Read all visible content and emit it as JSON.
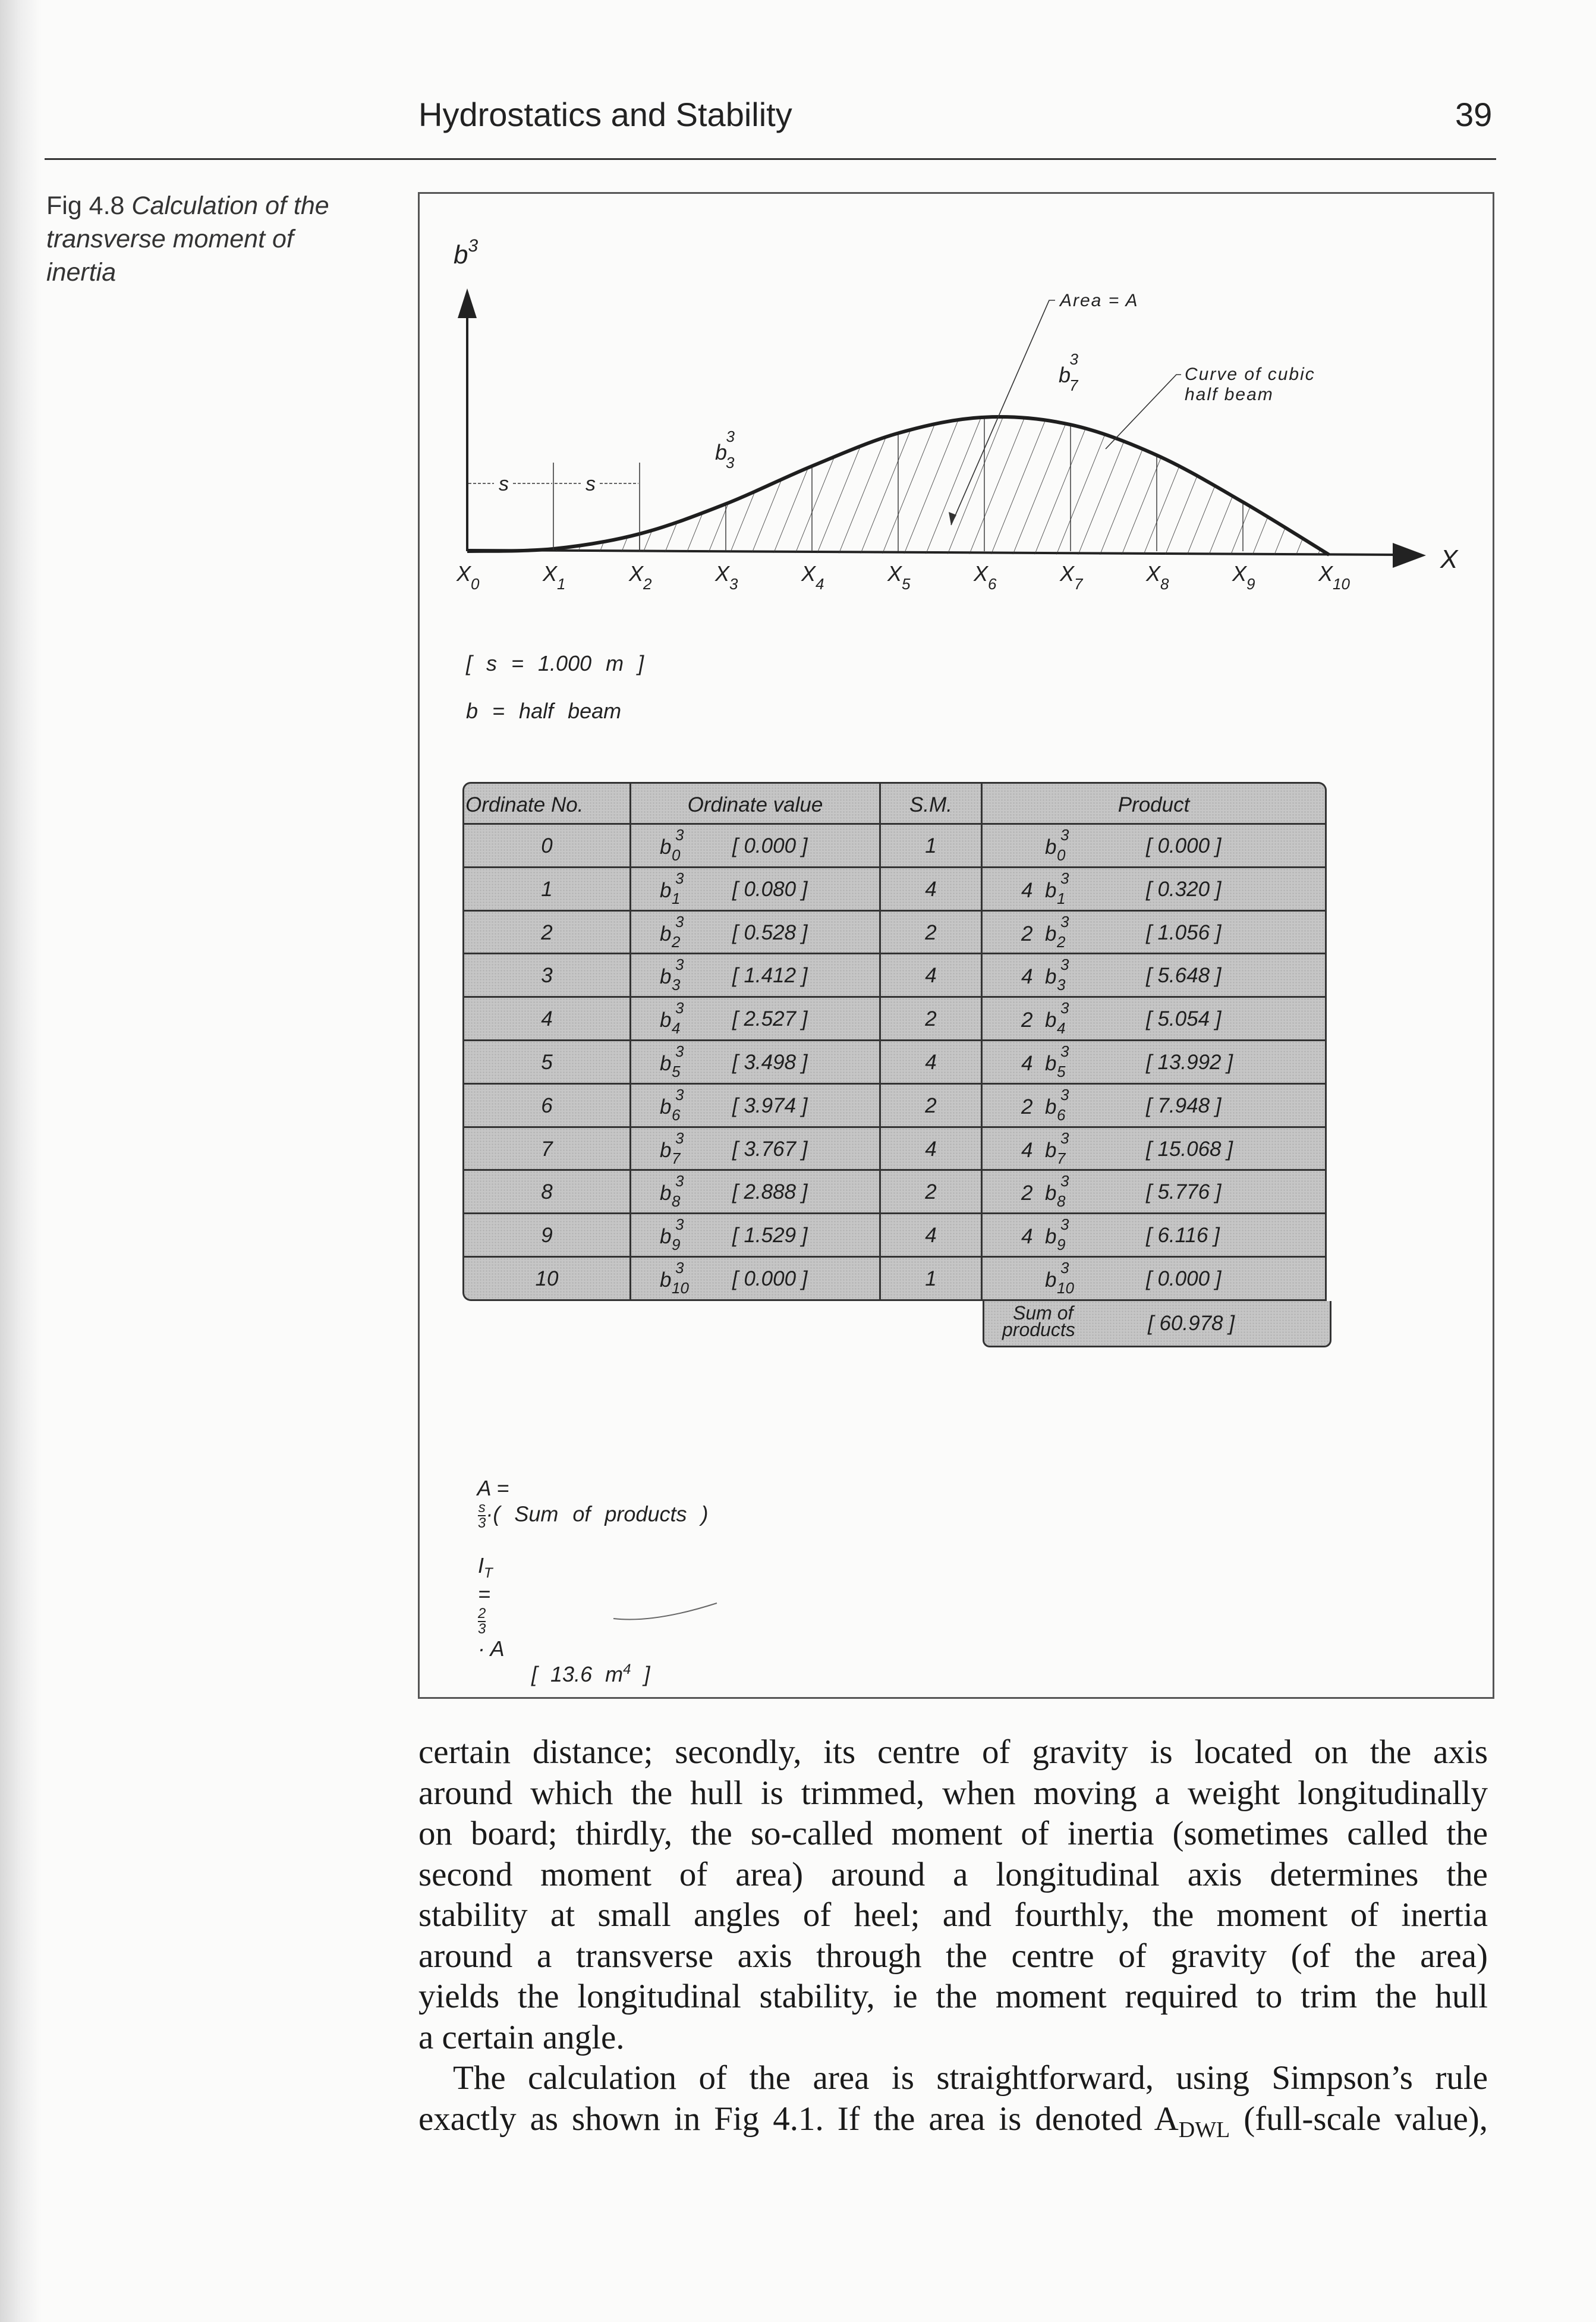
{
  "header": {
    "running_title": "Hydrostatics and Stability",
    "page_number": "39"
  },
  "caption": {
    "label": "Fig 4.8",
    "lines": [
      "Calculation of the",
      "transverse moment of",
      "inertia"
    ]
  },
  "graph": {
    "y_axis_label": "b",
    "y_axis_sup": "3",
    "x_axis_label": "X",
    "x_labels": [
      "0",
      "1",
      "2",
      "3",
      "4",
      "5",
      "6",
      "7",
      "8",
      "9",
      "10"
    ],
    "x_symbol": "X",
    "spacing_label": "s",
    "area_label": "Area = A",
    "curve_label": [
      "Curve of cubic",
      "half beam"
    ],
    "b3_label": {
      "base": "b",
      "sub": "3",
      "sup": "3"
    },
    "b7_label": {
      "base": "b",
      "sub": "7",
      "sup": "3"
    },
    "spacing_note": "[ s = 1.000 m ]",
    "b_note": "b = half beam"
  },
  "chart_data": {
    "type": "area",
    "x": [
      "X0",
      "X1",
      "X2",
      "X3",
      "X4",
      "X5",
      "X6",
      "X7",
      "X8",
      "X9",
      "X10"
    ],
    "values": [
      0.0,
      0.08,
      0.528,
      1.412,
      2.527,
      3.498,
      3.974,
      3.767,
      2.888,
      1.529,
      0.0
    ],
    "ylabel": "b³",
    "xlabel": "X",
    "hatched": true
  },
  "table": {
    "headers": [
      "Ordinate No.",
      "Ordinate value",
      "S.M.",
      "Product"
    ],
    "symbol": "b",
    "exponent": "3",
    "rows": [
      {
        "no": "0",
        "value": "[ 0.000 ]",
        "sm": "1",
        "coef": "",
        "product": "[ 0.000 ]"
      },
      {
        "no": "1",
        "value": "[ 0.080 ]",
        "sm": "4",
        "coef": "4",
        "product": "[ 0.320 ]"
      },
      {
        "no": "2",
        "value": "[ 0.528 ]",
        "sm": "2",
        "coef": "2",
        "product": "[ 1.056 ]"
      },
      {
        "no": "3",
        "value": "[ 1.412 ]",
        "sm": "4",
        "coef": "4",
        "product": "[ 5.648 ]"
      },
      {
        "no": "4",
        "value": "[ 2.527 ]",
        "sm": "2",
        "coef": "2",
        "product": "[ 5.054 ]"
      },
      {
        "no": "5",
        "value": "[ 3.498 ]",
        "sm": "4",
        "coef": "4",
        "product": "[ 13.992 ]"
      },
      {
        "no": "6",
        "value": "[ 3.974 ]",
        "sm": "2",
        "coef": "2",
        "product": "[ 7.948 ]"
      },
      {
        "no": "7",
        "value": "[ 3.767 ]",
        "sm": "4",
        "coef": "4",
        "product": "[ 15.068 ]"
      },
      {
        "no": "8",
        "value": "[ 2.888 ]",
        "sm": "2",
        "coef": "2",
        "product": "[ 5.776 ]"
      },
      {
        "no": "9",
        "value": "[ 1.529 ]",
        "sm": "4",
        "coef": "4",
        "product": "[ 6.116 ]"
      },
      {
        "no": "10",
        "value": "[ 0.000 ]",
        "sm": "1",
        "coef": "",
        "product": "[ 0.000 ]"
      }
    ],
    "sum_label": [
      "Sum of",
      "products"
    ],
    "sum_value": "[ 60.978 ]"
  },
  "formulas": {
    "area_lhs": "A =",
    "area_num": "s",
    "area_den": "3",
    "area_rhs": "·( Sum of products )",
    "it_lhs": "I",
    "it_sub": "T",
    "it_eq": "=",
    "it_num": "2",
    "it_den": "3",
    "it_rhs": "· A",
    "it_value": "[ 13.6 m",
    "it_value_sup": "4",
    "it_value_close": " ]"
  },
  "body": {
    "paragraph1": [
      "certain distance; secondly, its centre of gravity is located on the axis",
      "around which the hull is trimmed, when moving a weight longitudinally",
      "on board; thirdly, the so-called moment of inertia (sometimes called the",
      "second moment of area) around a longitudinal axis determines the",
      "stability at small angles of heel; and fourthly, the moment of inertia",
      "around a transverse axis through the centre of gravity (of the area)",
      "yields the longitudinal stability, ie the moment required to trim the hull",
      "a certain angle."
    ],
    "paragraph2": [
      "The calculation of the area is straightforward, using Simpson’s rule"
    ],
    "paragraph2_last": {
      "before": "exactly as shown in Fig 4.1. If the area is denoted A",
      "sub": "DWL",
      "after": " (full-scale value),"
    }
  }
}
